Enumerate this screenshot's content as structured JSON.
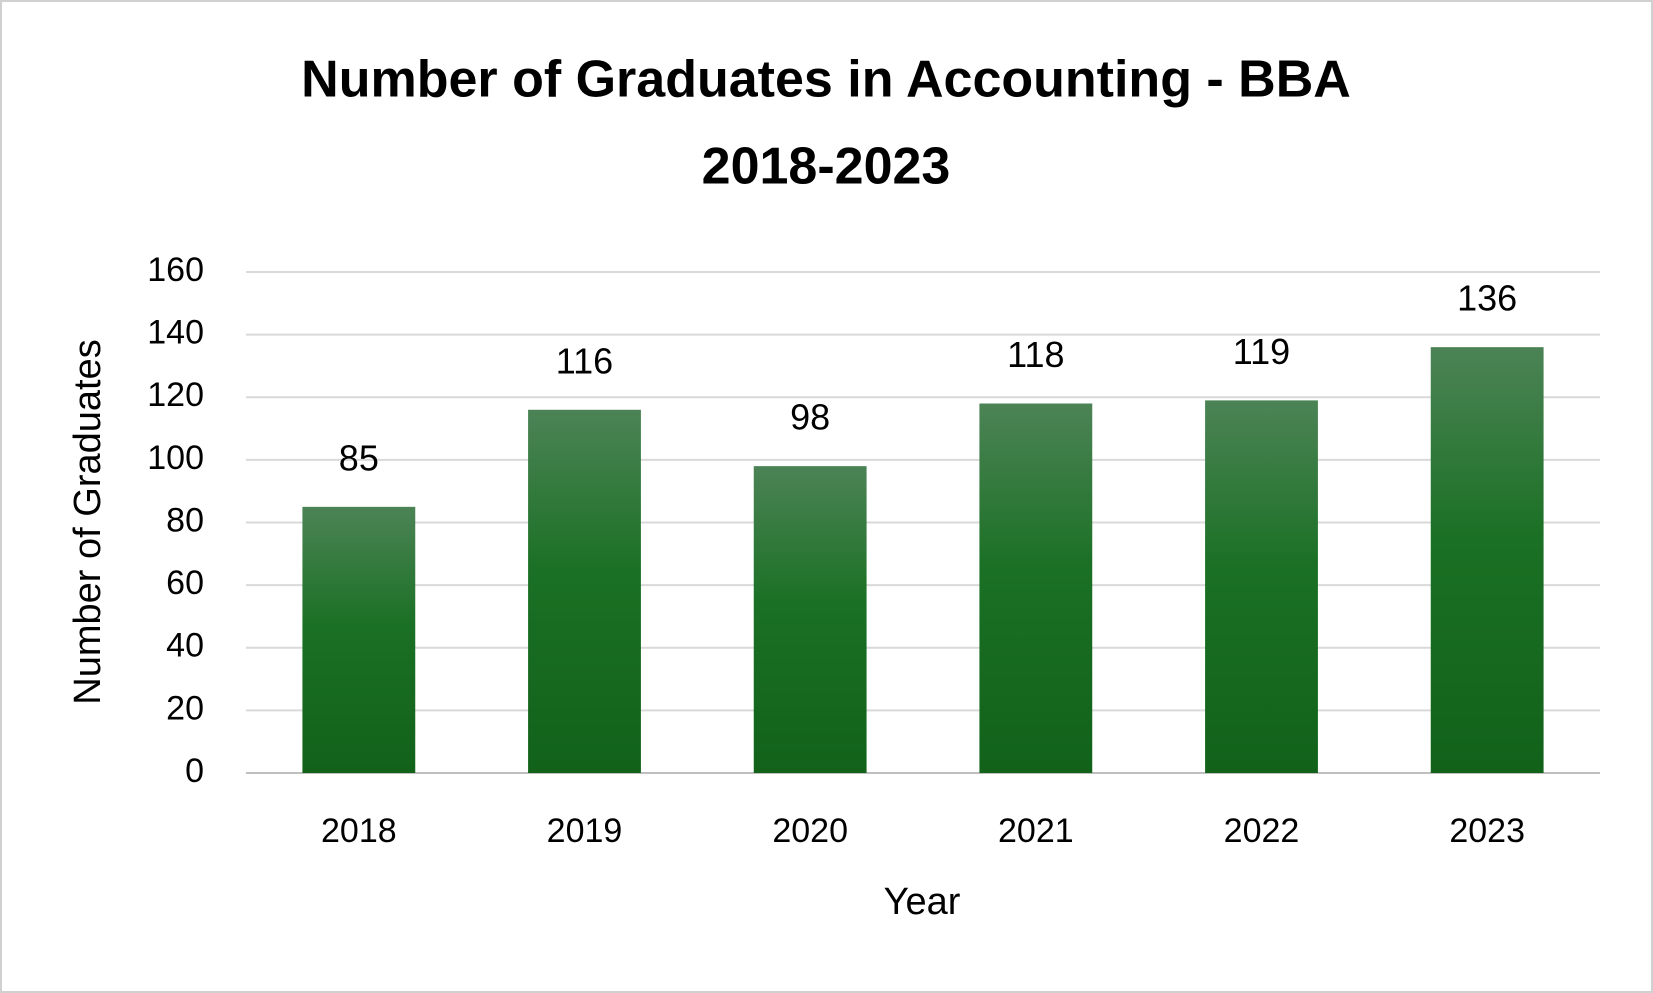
{
  "chart_data": {
    "type": "bar",
    "title": [
      "Number of Graduates in Accounting - BBA",
      "2018-2023"
    ],
    "x_label": "Year",
    "y_label": "Number of Graduates",
    "categories": [
      "2018",
      "2019",
      "2020",
      "2021",
      "2022",
      "2023"
    ],
    "values": [
      85,
      116,
      98,
      118,
      119,
      136
    ],
    "color": "#1a6e22",
    "ylim": [
      0,
      160
    ],
    "yticks": [
      0,
      20,
      40,
      60,
      80,
      100,
      120,
      140,
      160
    ],
    "grid": true
  }
}
